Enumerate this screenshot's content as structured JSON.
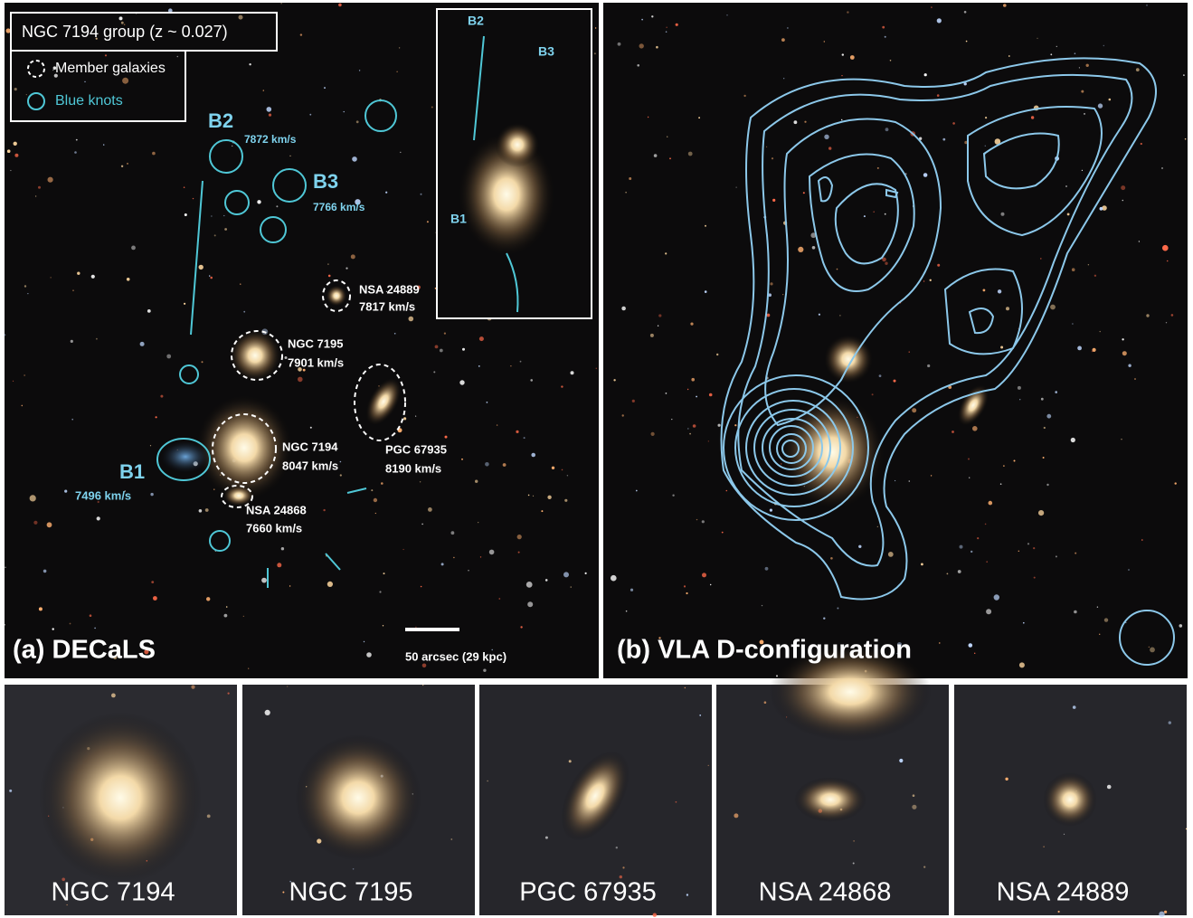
{
  "panel_a": {
    "label": "(a) DECaLS",
    "legend": {
      "title": "NGC 7194 group (z ~ 0.027)",
      "items": [
        "Member galaxies",
        "Blue knots"
      ]
    },
    "scale_bar": "50 arcsec (29 kpc)",
    "knots": [
      {
        "name": "B2",
        "velocity": "7872 km/s"
      },
      {
        "name": "B3",
        "velocity": "7766 km/s"
      },
      {
        "name": "B1",
        "velocity": "7496 km/s"
      }
    ],
    "galaxies": [
      {
        "name": "NSA 24889",
        "velocity": "7817 km/s"
      },
      {
        "name": "NGC 7195",
        "velocity": "7901 km/s"
      },
      {
        "name": "NGC 7194",
        "velocity": "8047 km/s"
      },
      {
        "name": "PGC 67935",
        "velocity": "8190 km/s"
      },
      {
        "name": "NSA 24868",
        "velocity": "7660 km/s"
      }
    ],
    "inset_labels": [
      "B2",
      "B3",
      "B1"
    ]
  },
  "panel_b": {
    "label": "(b) VLA D-configuration"
  },
  "thumbnails": [
    "NGC 7194",
    "NGC 7195",
    "PGC 67935",
    "NSA 24868",
    "NSA 24889"
  ]
}
